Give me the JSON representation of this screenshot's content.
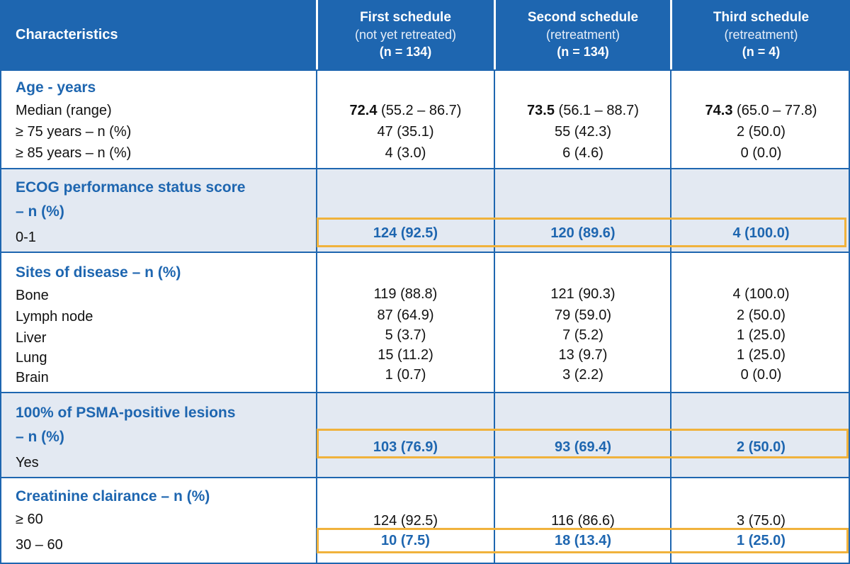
{
  "header": {
    "characteristics": "Characteristics",
    "columns": [
      {
        "title": "First schedule",
        "subtitle": "(not yet retreated)",
        "n": "(n = 134)"
      },
      {
        "title": "Second schedule",
        "subtitle": "(retreatment)",
        "n": "(n = 134)"
      },
      {
        "title": "Third schedule",
        "subtitle": "(retreatment)",
        "n": "(n = 4)"
      }
    ]
  },
  "age": {
    "title": "Age - years",
    "rows": [
      {
        "label": "Median (range)",
        "values": [
          {
            "bold": "72.4",
            "rest": " (55.2 – 86.7)"
          },
          {
            "bold": "73.5",
            "rest": " (56.1 – 88.7)"
          },
          {
            "bold": "74.3",
            "rest": " (65.0 – 77.8)"
          }
        ]
      },
      {
        "label": "≥ 75 years – n (%)",
        "values": [
          "47 (35.1)",
          "55 (42.3)",
          "2 (50.0)"
        ]
      },
      {
        "label": "≥ 85 years – n (%)",
        "values": [
          "4 (3.0)",
          "6 (4.6)",
          "0 (0.0)"
        ]
      }
    ]
  },
  "ecog": {
    "title_line1": "ECOG performance status score",
    "title_line2": "– n (%)",
    "row_label": "0-1",
    "values": [
      "124 (92.5)",
      "120 (89.6)",
      "4 (100.0)"
    ]
  },
  "sites": {
    "title": "Sites of disease – n (%)",
    "rows": [
      {
        "label": "Bone",
        "values": [
          "119 (88.8)",
          "121 (90.3)",
          "4 (100.0)"
        ]
      },
      {
        "label": "Lymph node",
        "values": [
          "87 (64.9)",
          "79 (59.0)",
          "2 (50.0)"
        ]
      },
      {
        "label": "Liver",
        "values": [
          "5 (3.7)",
          "7 (5.2)",
          "1 (25.0)"
        ]
      },
      {
        "label": "Lung",
        "values": [
          "15 (11.2)",
          "13 (9.7)",
          "1 (25.0)"
        ]
      },
      {
        "label": "Brain",
        "values": [
          "1 (0.7)",
          "3 (2.2)",
          "0 (0.0)"
        ]
      }
    ]
  },
  "psma": {
    "title_line1": "100% of PSMA-positive lesions",
    "title_line2": "– n (%)",
    "row_label": "Yes",
    "values": [
      "103 (76.9)",
      "93 (69.4)",
      "2 (50.0)"
    ]
  },
  "creatinine": {
    "title": "Creatinine clairance – n (%)",
    "rows": [
      {
        "label": "≥ 60",
        "values": [
          "124 (92.5)",
          "116 (86.6)",
          "3 (75.0)"
        ]
      },
      {
        "label": "30 – 60",
        "values": [
          "10 (7.5)",
          "18 (13.4)",
          "1 (25.0)"
        ]
      }
    ]
  },
  "colors": {
    "header_bg": "#1e66b0",
    "accent_text": "#1e66b0",
    "shaded_bg": "#e3e9f2",
    "highlight_border": "#f0b23c"
  }
}
